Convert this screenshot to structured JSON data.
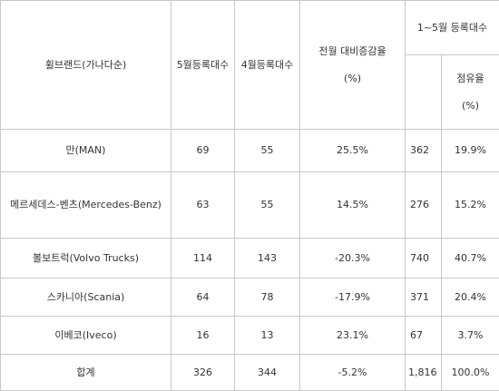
{
  "header": {
    "brand_col": "휠브랜드(가나다순)",
    "may_col": "5월등록대수",
    "april_col": "4월등록대수",
    "change_col_line1": "전월 대비증감율",
    "change_col_line2": "(%)",
    "ytd_group": "1~5월 등록대수",
    "share_col_line1": "점유율",
    "share_col_line2": "(%)"
  },
  "rows": [
    {
      "brand": "만(MAN)",
      "may": "69",
      "april": "55",
      "change": "25.5%",
      "ytd": "362",
      "share": "19.9%"
    },
    {
      "brand": "메르세데스-벤츠(Mercedes-Benz)",
      "may": "63",
      "april": "55",
      "change": "14.5%",
      "ytd": "276",
      "share": "15.2%"
    },
    {
      "brand": "볼보트럭(Volvo Trucks)",
      "may": "114",
      "april": "143",
      "change": "-20.3%",
      "ytd": "740",
      "share": "40.7%"
    },
    {
      "brand": "스카니아(Scania)",
      "may": "64",
      "april": "78",
      "change": "-17.9%",
      "ytd": "371",
      "share": "20.4%"
    },
    {
      "brand": "이베코(Iveco)",
      "may": "16",
      "april": "13",
      "change": "23.1%",
      "ytd": "67",
      "share": "3.7%"
    },
    {
      "brand": "합계",
      "may": "326",
      "april": "344",
      "change": "-5.2%",
      "ytd": "1,816",
      "share": "100.0%"
    }
  ]
}
